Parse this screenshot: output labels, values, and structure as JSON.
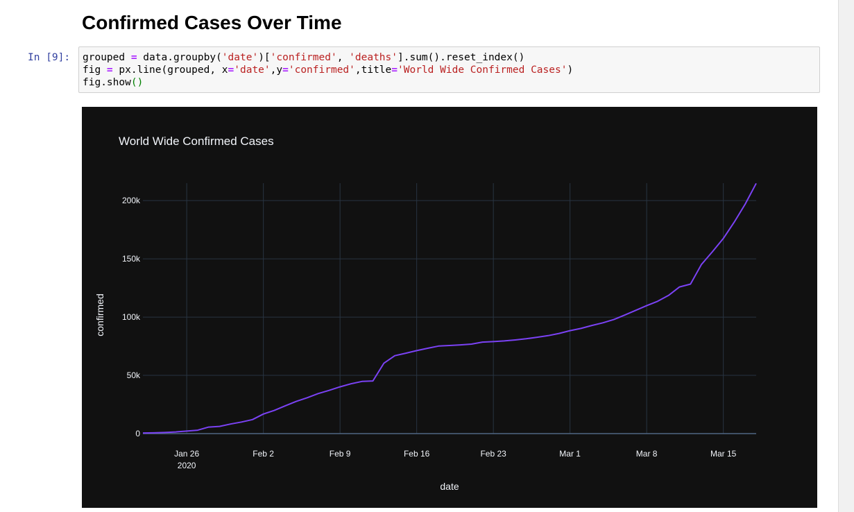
{
  "notebook": {
    "heading": "Confirmed Cases Over Time",
    "cell_prompt": "In [9]:",
    "code_lines": [
      [
        {
          "t": "grouped "
        },
        {
          "t": "=",
          "c": "op"
        },
        {
          "t": " data.groupby("
        },
        {
          "t": "'date'",
          "c": "str"
        },
        {
          "t": ")["
        },
        {
          "t": "'confirmed'",
          "c": "str"
        },
        {
          "t": ", "
        },
        {
          "t": "'deaths'",
          "c": "str"
        },
        {
          "t": "].sum().reset_index()"
        }
      ],
      [
        {
          "t": "fig "
        },
        {
          "t": "=",
          "c": "op"
        },
        {
          "t": " px.line(grouped, x"
        },
        {
          "t": "=",
          "c": "op"
        },
        {
          "t": "'date'",
          "c": "str"
        },
        {
          "t": ",y"
        },
        {
          "t": "=",
          "c": "op"
        },
        {
          "t": "'confirmed'",
          "c": "str"
        },
        {
          "t": ",title"
        },
        {
          "t": "=",
          "c": "op"
        },
        {
          "t": "'World Wide Confirmed Cases'",
          "c": "str"
        },
        {
          "t": ")"
        }
      ],
      [
        {
          "t": "fig.show"
        },
        {
          "t": "()",
          "c": "par"
        }
      ]
    ]
  },
  "colors": {
    "plot_bg": "#111111",
    "grid": "#283442",
    "zeroline": "#506784",
    "line": "#7b42f5",
    "text": "#f2f5fa"
  },
  "chart_data": {
    "type": "line",
    "title": "World Wide Confirmed Cases",
    "xlabel": "date",
    "ylabel": "confirmed",
    "x_tick_labels": [
      "Jan 26",
      "Feb 2",
      "Feb 9",
      "Feb 16",
      "Feb 23",
      "Mar 1",
      "Mar 8",
      "Mar 15"
    ],
    "x_tick_dates": [
      "2020-01-26",
      "2020-02-02",
      "2020-02-09",
      "2020-02-16",
      "2020-02-23",
      "2020-03-01",
      "2020-03-08",
      "2020-03-15"
    ],
    "x_tick_sublabel": "2020",
    "y_ticks": [
      0,
      50000,
      100000,
      150000,
      200000
    ],
    "y_tick_labels": [
      "0",
      "50k",
      "100k",
      "150k",
      "200k"
    ],
    "xlim": [
      "2020-01-22",
      "2020-03-18"
    ],
    "ylim": [
      0,
      215000
    ],
    "grid": true,
    "legend": "none",
    "series": [
      {
        "x": [
          "2020-01-22",
          "2020-01-23",
          "2020-01-24",
          "2020-01-25",
          "2020-01-26",
          "2020-01-27",
          "2020-01-28",
          "2020-01-29",
          "2020-01-30",
          "2020-01-31",
          "2020-02-01",
          "2020-02-02",
          "2020-02-03",
          "2020-02-04",
          "2020-02-05",
          "2020-02-06",
          "2020-02-07",
          "2020-02-08",
          "2020-02-09",
          "2020-02-10",
          "2020-02-11",
          "2020-02-12",
          "2020-02-13",
          "2020-02-14",
          "2020-02-15",
          "2020-02-16",
          "2020-02-17",
          "2020-02-18",
          "2020-02-19",
          "2020-02-20",
          "2020-02-21",
          "2020-02-22",
          "2020-02-23",
          "2020-02-24",
          "2020-02-25",
          "2020-02-26",
          "2020-02-27",
          "2020-02-28",
          "2020-02-29",
          "2020-03-01",
          "2020-03-02",
          "2020-03-03",
          "2020-03-04",
          "2020-03-05",
          "2020-03-06",
          "2020-03-07",
          "2020-03-08",
          "2020-03-09",
          "2020-03-10",
          "2020-03-11",
          "2020-03-12",
          "2020-03-13",
          "2020-03-14",
          "2020-03-15",
          "2020-03-16",
          "2020-03-17",
          "2020-03-18"
        ],
        "values": [
          555,
          653,
          941,
          1438,
          2118,
          2927,
          5578,
          6166,
          8234,
          9927,
          12038,
          16787,
          19881,
          23892,
          27635,
          30817,
          34391,
          37120,
          40150,
          42762,
          44802,
          45221,
          60368,
          66885,
          69030,
          71224,
          73258,
          75136,
          75639,
          76197,
          76819,
          78572,
          78958,
          79561,
          80406,
          81388,
          82746,
          84112,
          86011,
          88369,
          90306,
          92840,
          95120,
          97886,
          101801,
          105847,
          109821,
          113590,
          118620,
          125875,
          128352,
          145205,
          156101,
          167454,
          181574,
          197102,
          214821
        ]
      }
    ]
  }
}
